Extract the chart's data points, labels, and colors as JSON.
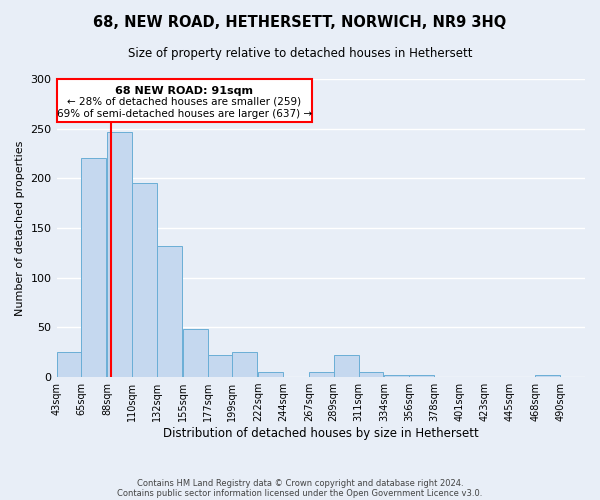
{
  "title": "68, NEW ROAD, HETHERSETT, NORWICH, NR9 3HQ",
  "subtitle": "Size of property relative to detached houses in Hethersett",
  "xlabel": "Distribution of detached houses by size in Hethersett",
  "ylabel": "Number of detached properties",
  "bin_labels": [
    "43sqm",
    "65sqm",
    "88sqm",
    "110sqm",
    "132sqm",
    "155sqm",
    "177sqm",
    "199sqm",
    "222sqm",
    "244sqm",
    "267sqm",
    "289sqm",
    "311sqm",
    "334sqm",
    "356sqm",
    "378sqm",
    "401sqm",
    "423sqm",
    "445sqm",
    "468sqm",
    "490sqm"
  ],
  "bin_edges": [
    43,
    65,
    88,
    110,
    132,
    155,
    177,
    199,
    222,
    244,
    267,
    289,
    311,
    334,
    356,
    378,
    401,
    423,
    445,
    468,
    490
  ],
  "bar_values": [
    25,
    220,
    247,
    195,
    132,
    48,
    22,
    25,
    5,
    0,
    5,
    22,
    5,
    2,
    2,
    0,
    0,
    0,
    0,
    2
  ],
  "bar_color": "#c5d8ef",
  "bar_edge_color": "#6aaed6",
  "red_line_x": 91,
  "ylim": [
    0,
    300
  ],
  "yticks": [
    0,
    50,
    100,
    150,
    200,
    250,
    300
  ],
  "annotation_title": "68 NEW ROAD: 91sqm",
  "annotation_line1": "← 28% of detached houses are smaller (259)",
  "annotation_line2": "69% of semi-detached houses are larger (637) →",
  "footer1": "Contains HM Land Registry data © Crown copyright and database right 2024.",
  "footer2": "Contains public sector information licensed under the Open Government Licence v3.0.",
  "background_color": "#e8eef7",
  "plot_bg_color": "#e8eef7",
  "grid_color": "#ffffff"
}
